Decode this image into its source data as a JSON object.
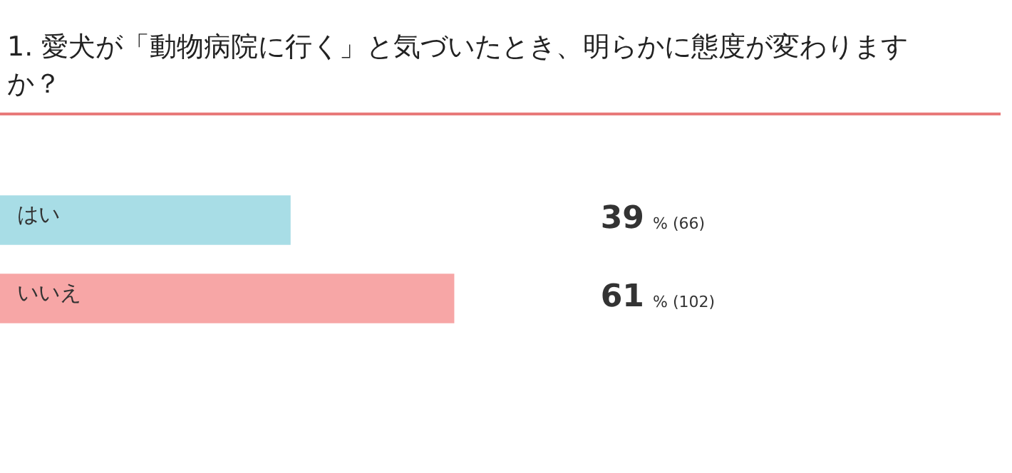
{
  "chart_data": {
    "type": "bar",
    "orientation": "horizontal",
    "title": "1. 愛犬が「動物病院に行く」と気づいたとき、明らかに態度が変わりますか？",
    "categories": [
      "はい",
      "いいえ"
    ],
    "values": [
      39,
      61
    ],
    "colors": [
      "#a8dde6",
      "#f7a6a6"
    ],
    "value_labels": [
      "39 % (66)",
      "61 % (102)"
    ]
  }
}
